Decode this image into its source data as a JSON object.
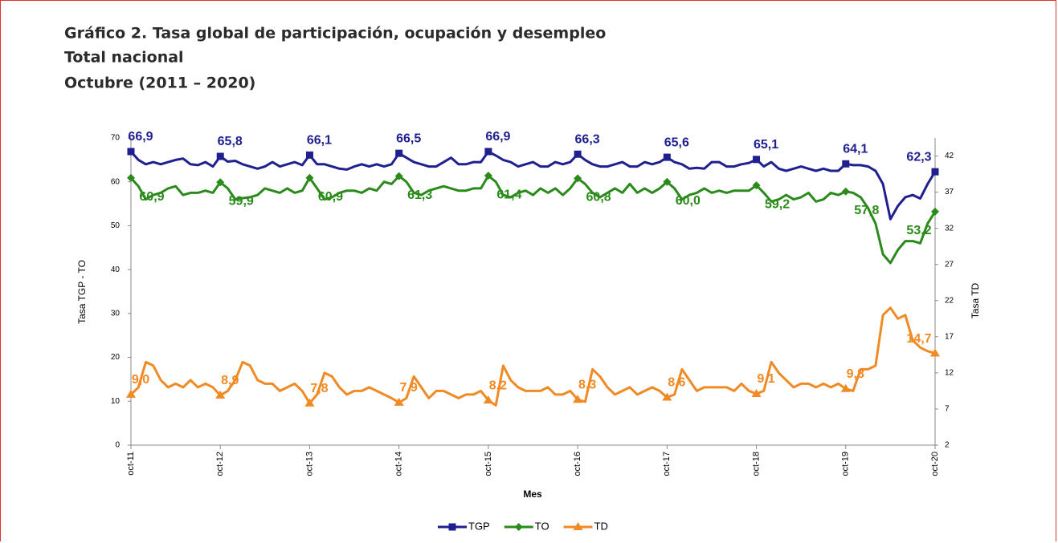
{
  "chart_data": {
    "type": "line",
    "title": "Gráfico 2. Tasa global de participación, ocupación y desempleo",
    "subtitle": [
      "Total nacional",
      "Octubre (2011 – 2020)"
    ],
    "x_label": "Mes",
    "y_label": "Tasa TGP - TO",
    "y2_label": "Tasa TD",
    "categories": [
      "oct-11",
      null,
      null,
      null,
      null,
      null,
      null,
      null,
      null,
      null,
      null,
      null,
      "oct-12",
      null,
      null,
      null,
      null,
      null,
      null,
      null,
      null,
      null,
      null,
      null,
      "oct-13",
      null,
      null,
      null,
      null,
      null,
      null,
      null,
      null,
      null,
      null,
      null,
      "oct-14",
      null,
      null,
      null,
      null,
      null,
      null,
      null,
      null,
      null,
      null,
      null,
      "oct-15",
      null,
      null,
      null,
      null,
      null,
      null,
      null,
      null,
      null,
      null,
      null,
      "oct-16",
      null,
      null,
      null,
      null,
      null,
      null,
      null,
      null,
      null,
      null,
      null,
      "oct-17",
      null,
      null,
      null,
      null,
      null,
      null,
      null,
      null,
      null,
      null,
      null,
      "oct-18",
      null,
      null,
      null,
      null,
      null,
      null,
      null,
      null,
      null,
      null,
      null,
      "oct-19",
      null,
      null,
      null,
      null,
      null,
      null,
      null,
      null,
      null,
      null,
      null,
      "oct-20"
    ],
    "ylim": [
      0,
      70
    ],
    "yticks": [
      0,
      10,
      20,
      30,
      40,
      50,
      60,
      70
    ],
    "y2lim": [
      2,
      44.5
    ],
    "y2ticks": [
      2,
      7,
      12,
      17,
      22,
      27,
      32,
      37,
      42
    ],
    "legend": "bottom",
    "series": [
      {
        "name": "TGP",
        "color": "#1f1f8f",
        "marker": "square",
        "label_position": "above",
        "values": [
          66.9,
          65,
          64,
          64.5,
          64,
          64.5,
          65,
          65.3,
          64,
          63.8,
          64.5,
          63.5,
          65.8,
          64.6,
          64.8,
          64,
          63.5,
          63,
          63.5,
          64.5,
          63.5,
          64,
          64.5,
          63.8,
          66.1,
          64,
          64,
          63.5,
          63,
          62.8,
          63.5,
          64,
          63.5,
          64,
          63.5,
          64,
          66.5,
          65.5,
          64.5,
          64,
          63.5,
          63.5,
          64.5,
          65.5,
          64,
          64,
          64.5,
          64.5,
          66.9,
          66,
          65,
          64.5,
          63.5,
          64,
          64.5,
          63.5,
          63.5,
          64.5,
          64,
          64.5,
          66.3,
          65,
          64,
          63.5,
          63.5,
          64,
          64.5,
          63.5,
          63.5,
          64.5,
          64,
          64.5,
          65.6,
          64.5,
          64,
          63,
          63.2,
          63,
          64.5,
          64.5,
          63.5,
          63.5,
          64,
          64.3,
          65.1,
          63.5,
          64.5,
          63,
          62.5,
          63,
          63.5,
          63,
          62.5,
          63,
          62.5,
          62.5,
          64.1,
          63.8,
          63.8,
          63.5,
          62.5,
          59.5,
          51.5,
          54.5,
          56.5,
          57,
          56.2,
          59.5,
          62.3
        ],
        "value_labels": [
          "66,9",
          null,
          null,
          null,
          null,
          null,
          null,
          null,
          null,
          null,
          null,
          null,
          "65,8",
          null,
          null,
          null,
          null,
          null,
          null,
          null,
          null,
          null,
          null,
          null,
          "66,1",
          null,
          null,
          null,
          null,
          null,
          null,
          null,
          null,
          null,
          null,
          null,
          "66,5",
          null,
          null,
          null,
          null,
          null,
          null,
          null,
          null,
          null,
          null,
          null,
          "66,9",
          null,
          null,
          null,
          null,
          null,
          null,
          null,
          null,
          null,
          null,
          null,
          "66,3",
          null,
          null,
          null,
          null,
          null,
          null,
          null,
          null,
          null,
          null,
          null,
          "65,6",
          null,
          null,
          null,
          null,
          null,
          null,
          null,
          null,
          null,
          null,
          null,
          "65,1",
          null,
          null,
          null,
          null,
          null,
          null,
          null,
          null,
          null,
          null,
          null,
          "64,1",
          null,
          null,
          null,
          null,
          null,
          null,
          null,
          null,
          null,
          null,
          null,
          "62,3"
        ]
      },
      {
        "name": "TO",
        "color": "#2a8a1a",
        "marker": "diamond",
        "label_position": "below",
        "values": [
          60.9,
          59,
          56,
          57,
          57.5,
          58.5,
          59,
          57,
          57.5,
          57.5,
          58,
          57.5,
          59.9,
          58.5,
          56,
          56.3,
          56.5,
          57,
          58.5,
          58,
          57.5,
          58.5,
          57.5,
          58,
          60.9,
          58.5,
          56,
          56.5,
          57.5,
          58,
          58,
          57.5,
          58.5,
          58,
          60,
          59.5,
          61.3,
          60,
          57.5,
          57,
          58,
          58.5,
          59,
          58.5,
          58,
          58,
          58.5,
          58.5,
          61.4,
          60,
          57,
          56.5,
          57.5,
          58,
          57,
          58.5,
          57.5,
          58.5,
          57,
          58.5,
          60.8,
          59.5,
          57.5,
          56.5,
          57.5,
          58.5,
          57.5,
          59.5,
          57.5,
          58.5,
          57.5,
          58.5,
          60.0,
          58.5,
          56,
          57,
          57.5,
          58.5,
          57.5,
          58,
          57.5,
          58,
          58,
          58,
          59.2,
          57.5,
          55.5,
          56,
          57,
          56,
          56.5,
          57.5,
          55.5,
          56,
          57.5,
          57,
          57.8,
          57.5,
          56.5,
          54,
          50.5,
          43.5,
          41.5,
          44.5,
          46.5,
          46.5,
          46,
          50.5,
          53.2
        ],
        "value_labels": [
          "60,9",
          null,
          null,
          null,
          null,
          null,
          null,
          null,
          null,
          null,
          null,
          null,
          "59,9",
          null,
          null,
          null,
          null,
          null,
          null,
          null,
          null,
          null,
          null,
          null,
          "60,9",
          null,
          null,
          null,
          null,
          null,
          null,
          null,
          null,
          null,
          null,
          null,
          "61,3",
          null,
          null,
          null,
          null,
          null,
          null,
          null,
          null,
          null,
          null,
          null,
          "61,4",
          null,
          null,
          null,
          null,
          null,
          null,
          null,
          null,
          null,
          null,
          null,
          "60,8",
          null,
          null,
          null,
          null,
          null,
          null,
          null,
          null,
          null,
          null,
          null,
          "60,0",
          null,
          null,
          null,
          null,
          null,
          null,
          null,
          null,
          null,
          null,
          null,
          "59,2",
          null,
          null,
          null,
          null,
          null,
          null,
          null,
          null,
          null,
          null,
          null,
          "57,8",
          null,
          null,
          null,
          null,
          null,
          null,
          null,
          null,
          null,
          null,
          null,
          "53,2"
        ]
      },
      {
        "name": "TD",
        "color": "#f08a24",
        "marker": "triangle",
        "axis": "y2",
        "label_position": "above",
        "values": [
          9.0,
          10,
          13.5,
          13,
          11,
          10,
          10.5,
          10,
          11,
          10,
          10.5,
          10,
          8.9,
          9.5,
          11,
          13.5,
          13,
          11,
          10.5,
          10.5,
          9.5,
          10,
          10.5,
          9.5,
          7.8,
          9,
          12,
          11.5,
          10,
          9,
          9.5,
          9.5,
          10,
          9.5,
          9,
          8.5,
          7.9,
          8.5,
          11.5,
          10,
          8.5,
          9.5,
          9.5,
          9,
          8.5,
          9,
          9,
          9.5,
          8.2,
          7.5,
          13,
          11,
          10,
          9.5,
          9.5,
          9.5,
          10,
          9,
          9,
          9.5,
          8.3,
          8,
          12.5,
          11.5,
          10,
          9,
          9.5,
          10,
          9,
          9.5,
          10,
          9.5,
          8.6,
          9,
          12.5,
          11,
          9.5,
          10,
          10,
          10,
          10,
          9.5,
          10.5,
          9.5,
          9.1,
          9.5,
          13.5,
          12,
          11,
          10,
          10.5,
          10.5,
          10,
          10.5,
          10,
          10.5,
          9.8,
          9.5,
          12.5,
          12.5,
          13,
          20,
          21,
          19.5,
          20,
          16.5,
          15.5,
          15,
          14.7
        ],
        "value_labels": [
          "9,0",
          null,
          null,
          null,
          null,
          null,
          null,
          null,
          null,
          null,
          null,
          null,
          "8,9",
          null,
          null,
          null,
          null,
          null,
          null,
          null,
          null,
          null,
          null,
          null,
          "7,8",
          null,
          null,
          null,
          null,
          null,
          null,
          null,
          null,
          null,
          null,
          null,
          "7,9",
          null,
          null,
          null,
          null,
          null,
          null,
          null,
          null,
          null,
          null,
          null,
          "8,2",
          null,
          null,
          null,
          null,
          null,
          null,
          null,
          null,
          null,
          null,
          null,
          "8,3",
          null,
          null,
          null,
          null,
          null,
          null,
          null,
          null,
          null,
          null,
          null,
          "8,6",
          null,
          null,
          null,
          null,
          null,
          null,
          null,
          null,
          null,
          null,
          null,
          "9,1",
          null,
          null,
          null,
          null,
          null,
          null,
          null,
          null,
          null,
          null,
          null,
          "9,8",
          null,
          null,
          null,
          null,
          null,
          null,
          null,
          null,
          null,
          null,
          null,
          "14,7"
        ]
      }
    ]
  }
}
